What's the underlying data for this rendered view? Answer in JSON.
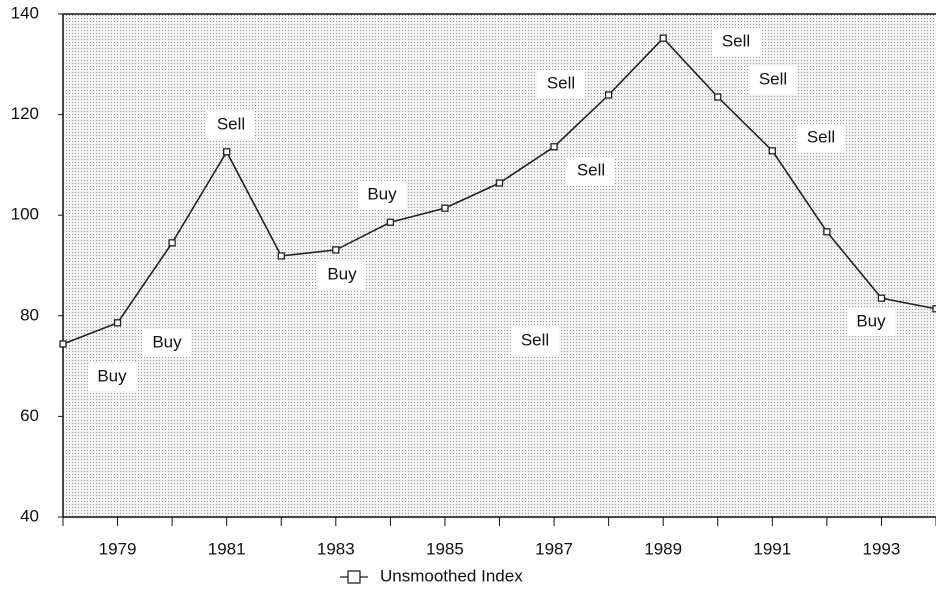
{
  "chart_data": {
    "type": "line",
    "x": [
      1978,
      1979,
      1980,
      1981,
      1982,
      1983,
      1984,
      1985,
      1986,
      1987,
      1988,
      1989,
      1990,
      1991,
      1992,
      1993,
      1994
    ],
    "series": [
      {
        "name": "Unsmoothed Index",
        "color": "#222222",
        "values": [
          74.4,
          78.6,
          94.5,
          112.6,
          91.9,
          93.1,
          98.6,
          101.4,
          106.4,
          113.6,
          123.9,
          135.2,
          123.5,
          112.8,
          96.7,
          83.5,
          81.4
        ]
      }
    ],
    "xlim": [
      1978,
      1994
    ],
    "xticks": [
      1979,
      1981,
      1983,
      1985,
      1987,
      1989,
      1991,
      1993
    ],
    "xticks_minor": [
      1978,
      1979,
      1980,
      1981,
      1982,
      1983,
      1984,
      1985,
      1986,
      1987,
      1988,
      1989,
      1990,
      1991,
      1992,
      1993,
      1994
    ],
    "ylim": [
      40,
      140
    ],
    "yticks": [
      40,
      60,
      80,
      100,
      120,
      140
    ],
    "annotations": [
      "Sell",
      "Buy",
      "Buy",
      "Sell",
      "Sell",
      "Sell",
      "Sell",
      "Sell",
      "Sell",
      "Buy",
      "Buy",
      "Buy"
    ],
    "legend": "bottom"
  }
}
